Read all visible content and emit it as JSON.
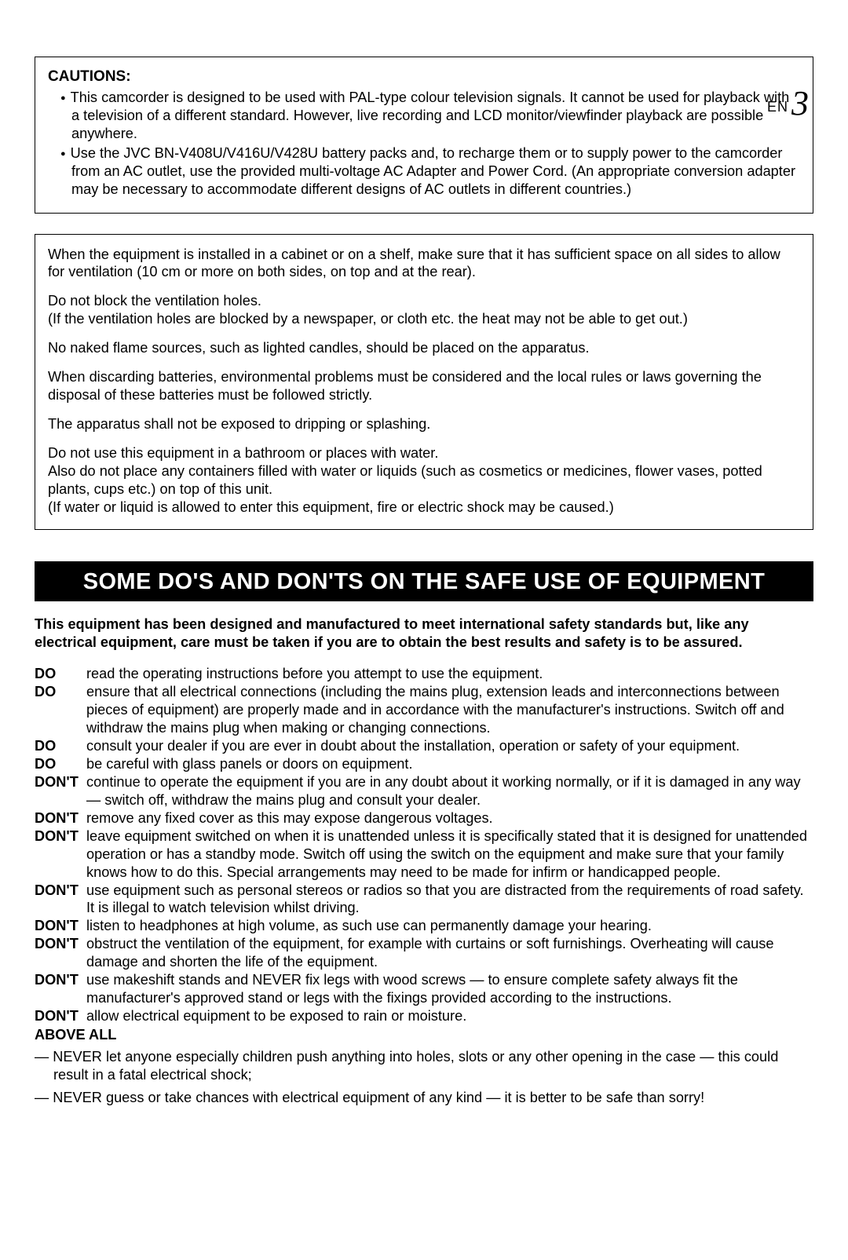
{
  "page_number": {
    "prefix": "EN",
    "digit": "3"
  },
  "cautions": {
    "heading": "CAUTIONS:",
    "items": [
      "This camcorder is designed to be used with PAL-type colour television signals. It cannot be used for playback with a television of a different standard. However, live recording and LCD monitor/viewfinder playback are possible anywhere.",
      "Use the JVC BN-V408U/V416U/V428U battery packs and, to recharge them or to supply power to the camcorder from an AC outlet, use the provided multi-voltage AC Adapter and Power Cord. (An appropriate conversion adapter may be necessary to accommodate different designs of AC outlets in different countries.)"
    ]
  },
  "ventilation": {
    "p1": "When the equipment is installed in a cabinet or on a shelf, make sure that it has sufficient space on all sides to allow for ventilation (10 cm or more on both sides, on top and at the rear).",
    "p2": "Do not block the ventilation holes.\n(If the ventilation holes are blocked by a newspaper, or cloth etc. the heat may not be able to get out.)",
    "p3": "No naked flame sources, such as lighted candles, should be placed on the apparatus.",
    "p4": "When discarding batteries, environmental problems must be considered and the local rules or laws governing the disposal of these batteries must be followed strictly.",
    "p5": "The apparatus shall not be exposed to dripping or splashing.",
    "p6": "Do not use this equipment in a bathroom or places with water.\nAlso do not place any containers filled with water or liquids (such as cosmetics or medicines, flower vases, potted plants, cups etc.) on top of this unit.\n(If water or liquid is allowed to enter this equipment, fire or electric shock may be caused.)"
  },
  "dos_section": {
    "bar_title": "SOME DO'S AND DON'TS ON THE SAFE USE OF EQUIPMENT",
    "intro": "This equipment has been designed and manufactured to meet international safety standards but, like any electrical equipment, care must be taken if you are to obtain the best results and safety is to be assured.",
    "items": [
      {
        "label": "DO",
        "text": "read the operating instructions before you attempt to use the equipment."
      },
      {
        "label": "DO",
        "text": "ensure that all electrical connections (including the mains plug, extension leads and interconnections between pieces of equipment) are properly made and in accordance with the manufacturer's instructions. Switch off and withdraw the mains plug when making or changing connections."
      },
      {
        "label": "DO",
        "text": "consult your dealer if you are ever in doubt about the installation, operation or safety of your equipment."
      },
      {
        "label": "DO",
        "text": "be careful with glass panels or doors on equipment."
      },
      {
        "label": "DON'T",
        "text": "continue to operate the equipment if you are in any doubt about it working normally, or if it is damaged in any way — switch off, withdraw the mains plug and consult your dealer."
      },
      {
        "label": "DON'T",
        "text": "remove any fixed cover as this may expose dangerous voltages."
      },
      {
        "label": "DON'T",
        "text": "leave equipment switched on when it is unattended unless it is specifically stated that it is designed for unattended operation or has a standby mode. Switch off using the switch on the equipment and make sure that your family knows how to do this. Special arrangements may need to be made for infirm or handicapped people."
      },
      {
        "label": "DON'T",
        "text": "use equipment such as personal stereos or radios so that you are distracted from the requirements of road safety. It is illegal to watch television whilst driving."
      },
      {
        "label": "DON'T",
        "text": "listen to headphones at high volume, as such use can permanently damage your hearing."
      },
      {
        "label": "DON'T",
        "text": "obstruct the ventilation of the equipment, for example with curtains or soft furnishings. Overheating will cause damage and shorten the life of the equipment."
      },
      {
        "label": "DON'T",
        "text": "use makeshift stands and NEVER fix legs with wood screws — to ensure complete safety always fit the manufacturer's approved stand or legs with the fixings provided according to the instructions."
      },
      {
        "label": "DON'T",
        "text": "allow electrical equipment to be exposed to rain or moisture."
      }
    ],
    "above_all_label": "ABOVE ALL",
    "above_all_items": [
      "— NEVER let anyone especially children push anything into holes, slots or any other opening in the case — this could result in a fatal electrical shock;",
      "— NEVER guess or take chances with electrical equipment of any kind — it is better to be safe than sorry!"
    ]
  }
}
